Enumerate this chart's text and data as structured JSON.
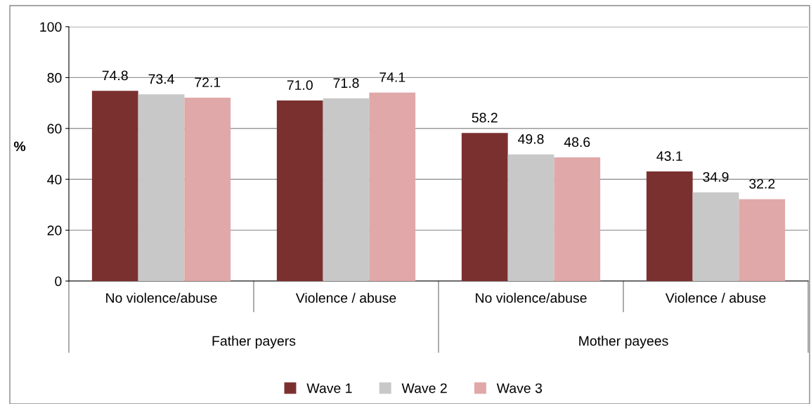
{
  "chart_data": {
    "type": "bar",
    "ylabel": "%",
    "categories": [
      "No violence/abuse",
      "Violence / abuse",
      "No violence/abuse",
      "Violence / abuse"
    ],
    "series": [
      {
        "name": "Wave 1",
        "color": "#7b3030",
        "values": [
          74.8,
          71.0,
          58.2,
          43.1
        ],
        "value_labels": [
          "74.8",
          "71.0",
          "58.2",
          "43.1"
        ]
      },
      {
        "name": "Wave 2",
        "color": "#c8c8c8",
        "values": [
          73.4,
          71.8,
          49.8,
          34.9
        ],
        "value_labels": [
          "73.4",
          "71.8",
          "49.8",
          "34.9"
        ]
      },
      {
        "name": "Wave 3",
        "color": "#e0a8a8",
        "values": [
          72.1,
          74.1,
          48.6,
          32.2
        ],
        "value_labels": [
          "72.1",
          "74.1",
          "48.6",
          "32.2"
        ]
      }
    ],
    "annotations": [
      "Father payers",
      "Mother payees"
    ],
    "ylim": [
      0,
      100
    ],
    "yticks": [
      0,
      20,
      40,
      60,
      80,
      100
    ],
    "grid": "y",
    "legend": "bottom"
  }
}
